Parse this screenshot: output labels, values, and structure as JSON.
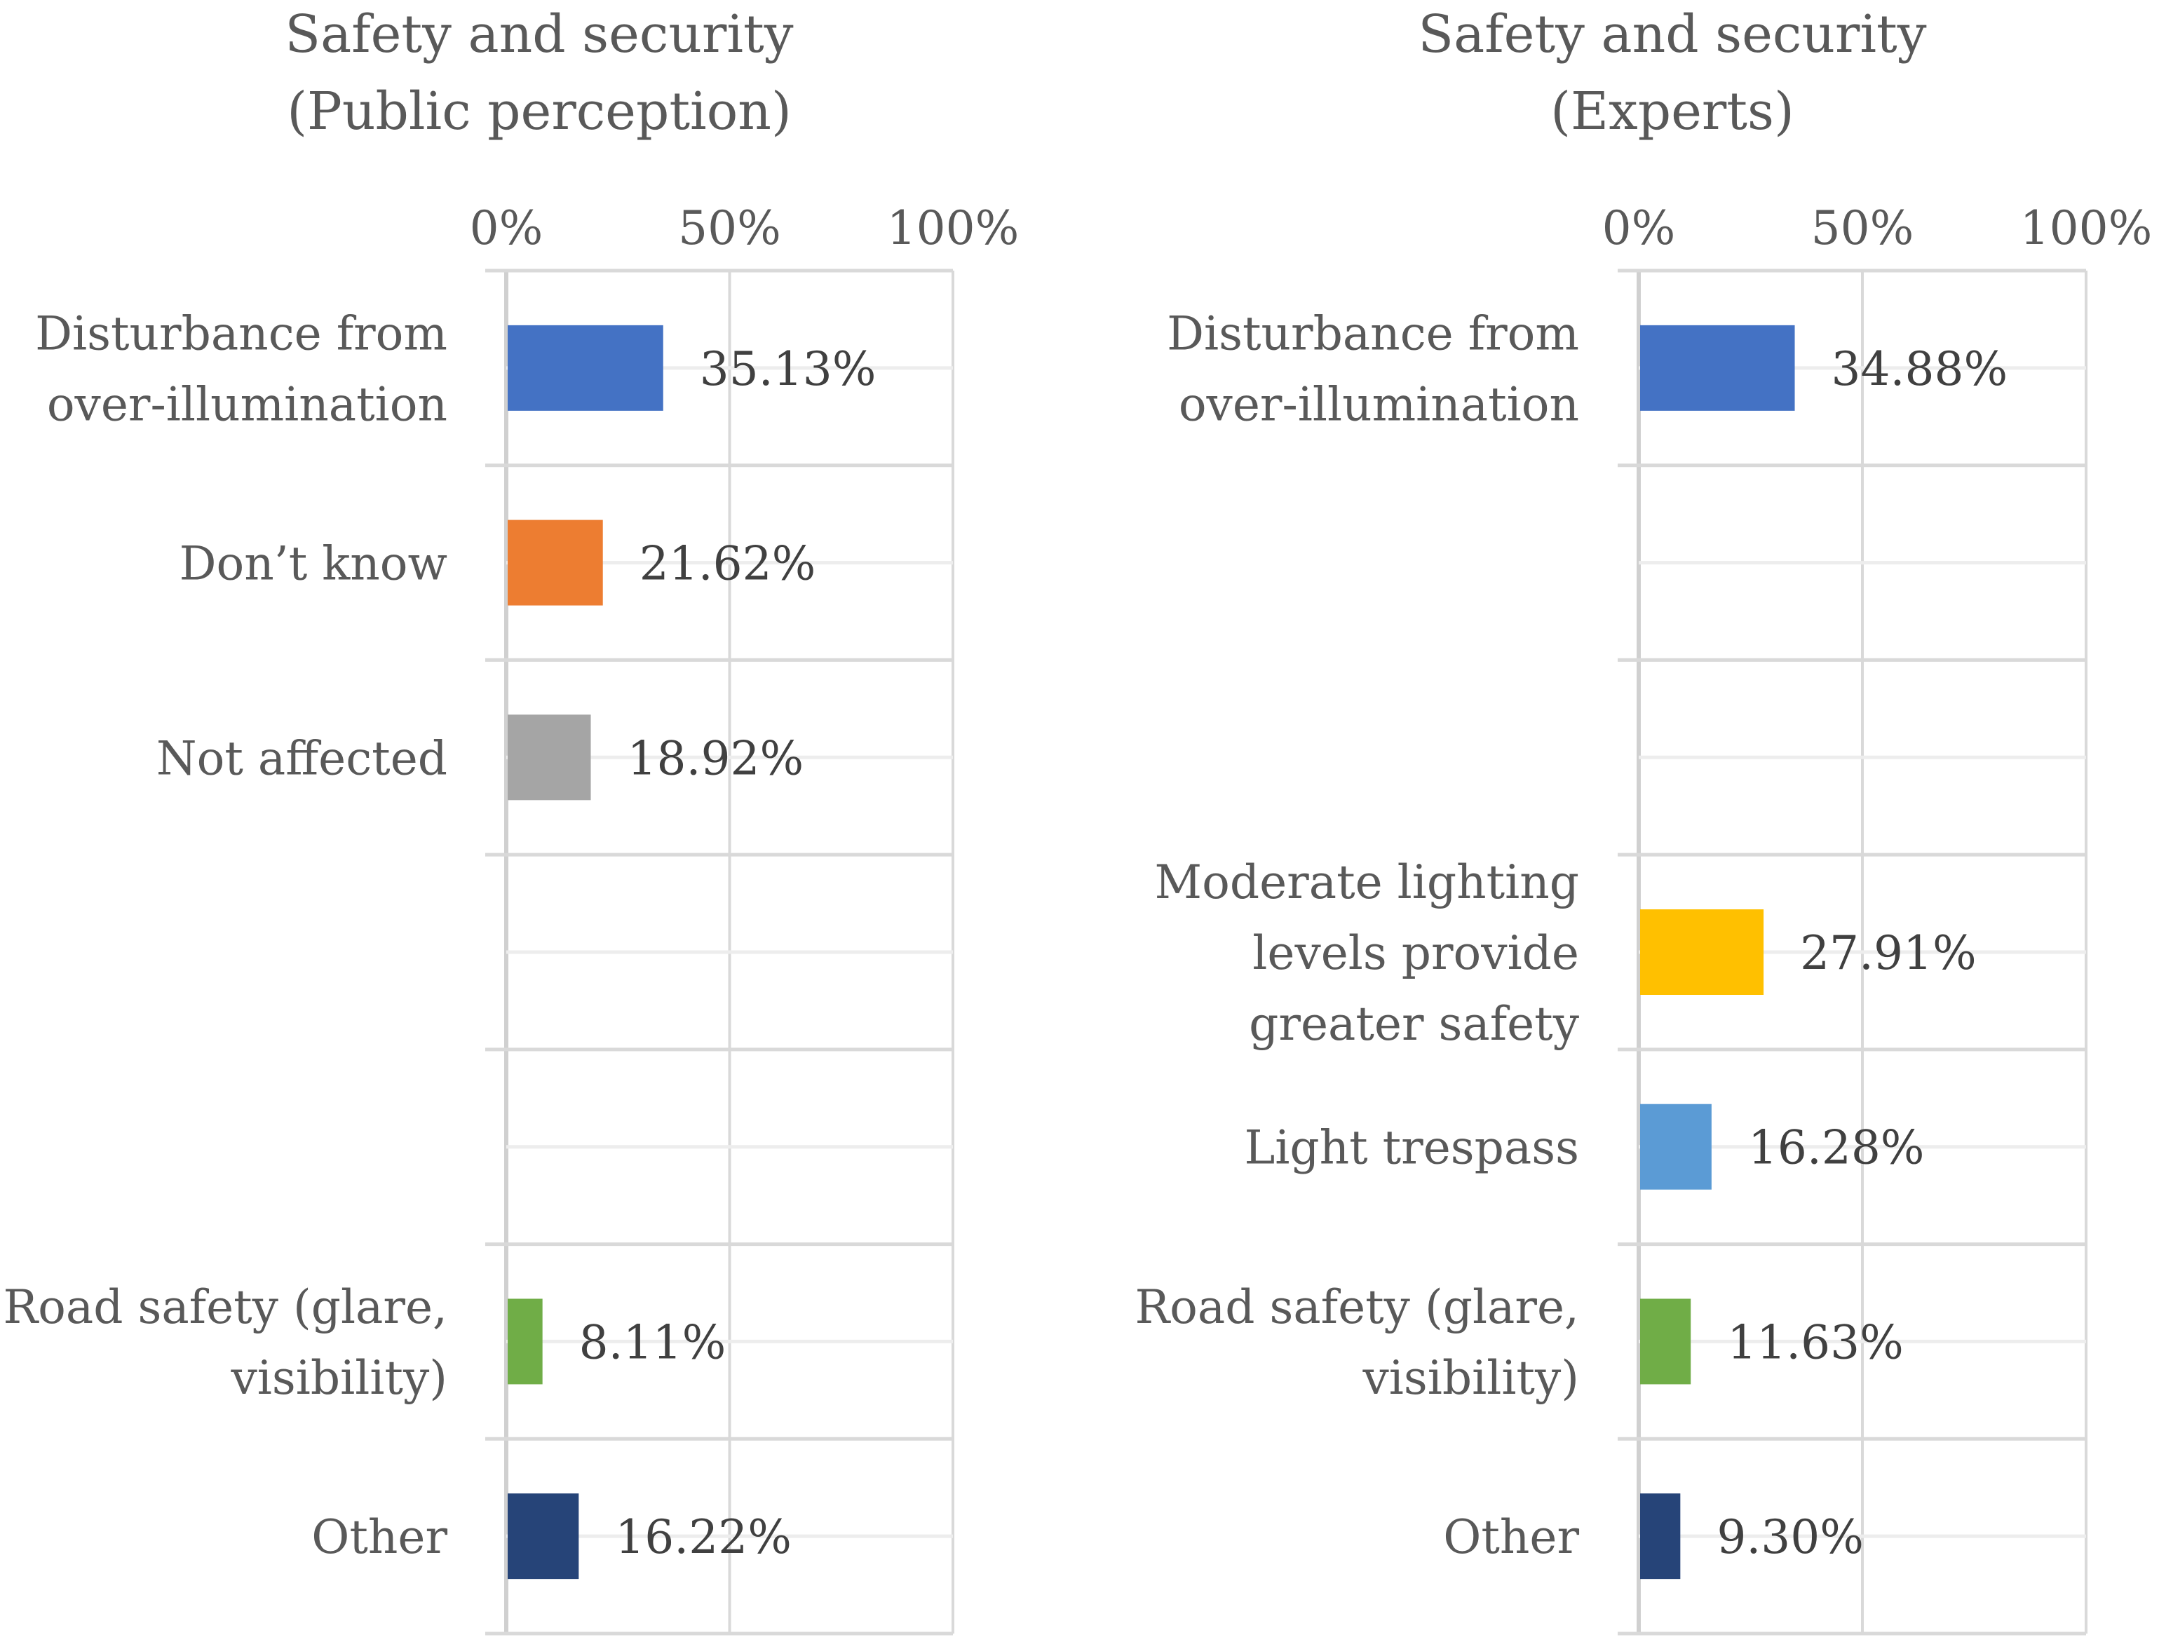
{
  "chart_data": [
    {
      "type": "bar",
      "orientation": "horizontal",
      "title": [
        "Safety and security",
        "(Public perception)"
      ],
      "xlim": [
        0,
        100
      ],
      "x_ticks": [
        "0%",
        "50%",
        "100%"
      ],
      "axis_position": "top",
      "grid": true,
      "rows": [
        {
          "label": [
            "Disturbance from",
            "over-illumination"
          ],
          "value": 35.13,
          "value_label": "35.13%",
          "color": "#4472C4"
        },
        {
          "label": [
            "Don’t know"
          ],
          "value": 21.62,
          "value_label": "21.62%",
          "color": "#ED7D31"
        },
        {
          "label": [
            "Not affected"
          ],
          "value": 18.92,
          "value_label": "18.92%",
          "color": "#A5A5A5"
        },
        {
          "label": [],
          "value": null,
          "value_label": "",
          "color": ""
        },
        {
          "label": [],
          "value": null,
          "value_label": "",
          "color": ""
        },
        {
          "label": [
            "Road safety (glare,",
            "visibility)"
          ],
          "value": 8.11,
          "value_label": "8.11%",
          "color": "#70AD47"
        },
        {
          "label": [
            "Other"
          ],
          "value": 16.22,
          "value_label": "16.22%",
          "color": "#264478"
        }
      ]
    },
    {
      "type": "bar",
      "orientation": "horizontal",
      "title": [
        "Safety and security",
        "(Experts)"
      ],
      "xlim": [
        0,
        100
      ],
      "x_ticks": [
        "0%",
        "50%",
        "100%"
      ],
      "axis_position": "top",
      "grid": true,
      "rows": [
        {
          "label": [
            "Disturbance from",
            "over-illumination"
          ],
          "value": 34.88,
          "value_label": "34.88%",
          "color": "#4472C4"
        },
        {
          "label": [],
          "value": null,
          "value_label": "",
          "color": ""
        },
        {
          "label": [],
          "value": null,
          "value_label": "",
          "color": ""
        },
        {
          "label": [
            "Moderate lighting",
            "levels provide",
            "greater safety"
          ],
          "value": 27.91,
          "value_label": "27.91%",
          "color": "#FFC000"
        },
        {
          "label": [
            "Light trespass"
          ],
          "value": 16.28,
          "value_label": "16.28%",
          "color": "#5B9BD5"
        },
        {
          "label": [
            "Road safety (glare,",
            "visibility)"
          ],
          "value": 11.63,
          "value_label": "11.63%",
          "color": "#70AD47"
        },
        {
          "label": [
            "Other"
          ],
          "value": 9.3,
          "value_label": "9.30%",
          "color": "#264478"
        }
      ]
    }
  ]
}
